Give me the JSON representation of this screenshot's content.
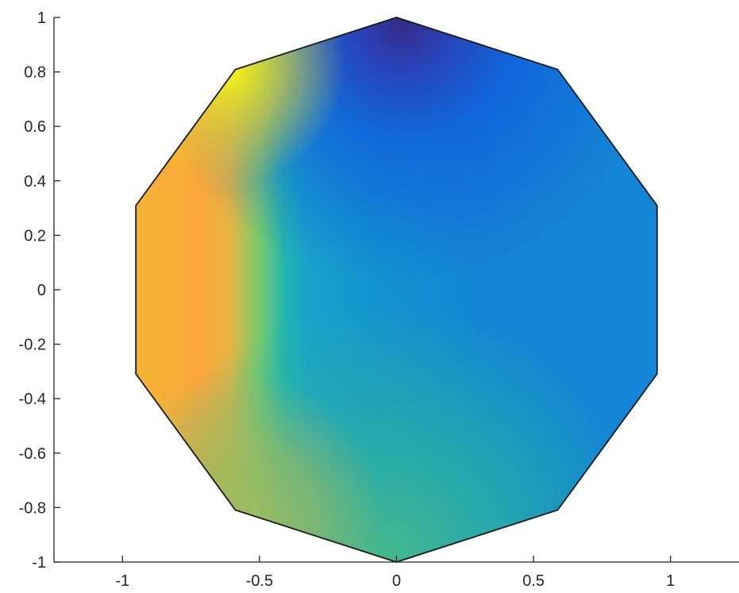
{
  "chart_data": {
    "type": "heatmap",
    "title": "",
    "xlabel": "",
    "ylabel": "",
    "xlim": [
      -1.25,
      1.25
    ],
    "ylim": [
      -1,
      1
    ],
    "x_ticks": [
      {
        "value": -1,
        "label": "-1"
      },
      {
        "value": -0.5,
        "label": "-0.5"
      },
      {
        "value": 0,
        "label": "0"
      },
      {
        "value": 0.5,
        "label": "0.5"
      },
      {
        "value": 1,
        "label": "1"
      }
    ],
    "y_ticks": [
      {
        "value": 1,
        "label": "1"
      },
      {
        "value": 0.8,
        "label": "0.8"
      },
      {
        "value": 0.6,
        "label": "0.6"
      },
      {
        "value": 0.4,
        "label": "0.4"
      },
      {
        "value": 0.2,
        "label": "0.2"
      },
      {
        "value": 0,
        "label": "0"
      },
      {
        "value": -0.2,
        "label": "-0.2"
      },
      {
        "value": -0.4,
        "label": "-0.4"
      },
      {
        "value": -0.6,
        "label": "-0.6"
      },
      {
        "value": -0.8,
        "label": "-0.8"
      },
      {
        "value": -1,
        "label": "-1"
      }
    ],
    "grid": false,
    "colormap": "parula",
    "domain_shape": "decagon",
    "domain_vertices": [
      [
        0,
        1
      ],
      [
        0.588,
        0.809
      ],
      [
        0.951,
        0.309
      ],
      [
        0.951,
        -0.309
      ],
      [
        0.588,
        -0.809
      ],
      [
        0,
        -1
      ],
      [
        -0.588,
        -0.809
      ],
      [
        -0.951,
        -0.309
      ],
      [
        -0.951,
        0.309
      ],
      [
        -0.588,
        0.809
      ]
    ],
    "shading_colors": {
      "top_center": "#352a87",
      "upper_right": "#0f5cdd",
      "right": "#1485d4",
      "center": "#1296c9",
      "lower_center": "#2bb0a2",
      "bottom": "#47b98a",
      "bottom_left": "#9ebd5e",
      "left": "#f3b533",
      "upper_left": "#f9fb0e",
      "band_orange": "#fca63a",
      "band_green": "#7ccb6a",
      "band_teal": "#22b6b0"
    },
    "outline_color": "#1a1a1a"
  }
}
